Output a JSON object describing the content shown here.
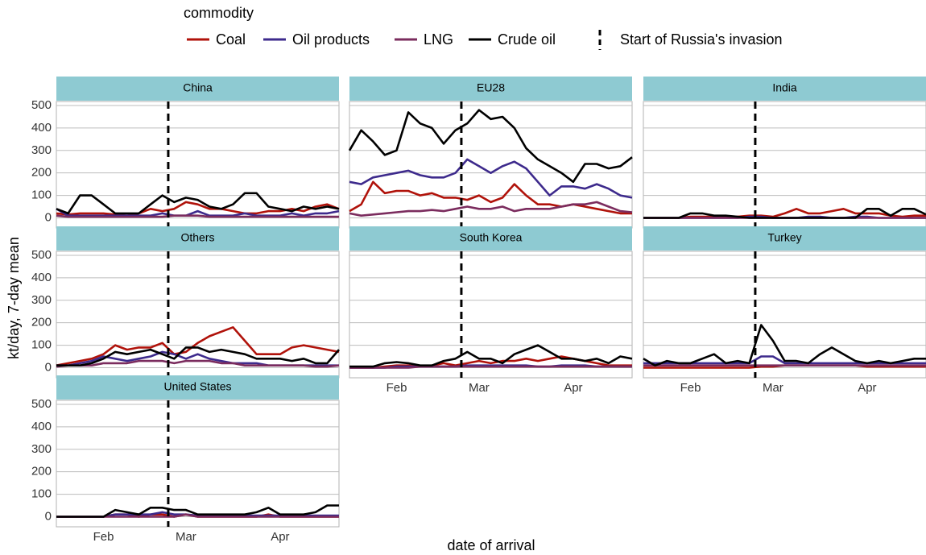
{
  "chart_data": {
    "type": "line",
    "legend_title": "commodity",
    "x_label": "date of arrival",
    "y_label": "kt/day, 7-day mean",
    "series": [
      {
        "name": "Coal",
        "color": "#b0120a"
      },
      {
        "name": "Oil products",
        "color": "#3d2a8c"
      },
      {
        "name": "LNG",
        "color": "#7b2c5e"
      },
      {
        "name": "Crude oil",
        "color": "#000000"
      }
    ],
    "vline": {
      "label": "Start of Russia's invasion",
      "x": 9.5
    },
    "categories": [
      null,
      null,
      null,
      null,
      "Feb",
      null,
      null,
      null,
      null,
      null,
      null,
      "Mar",
      null,
      null,
      null,
      null,
      null,
      null,
      null,
      "Apr",
      null,
      null,
      null,
      null,
      null
    ],
    "ylim": [
      -45,
      518
    ],
    "yticks": [
      0,
      100,
      200,
      300,
      400,
      500
    ],
    "grid": true,
    "facets": [
      {
        "title": "China",
        "series": [
          {
            "values": [
              20,
              15,
              20,
              20,
              20,
              15,
              10,
              20,
              40,
              30,
              40,
              70,
              60,
              40,
              40,
              30,
              20,
              20,
              30,
              30,
              40,
              30,
              50,
              60,
              40
            ]
          },
          {
            "values": [
              40,
              10,
              10,
              10,
              10,
              10,
              10,
              10,
              10,
              20,
              10,
              10,
              30,
              10,
              10,
              10,
              20,
              10,
              10,
              10,
              20,
              10,
              20,
              20,
              30
            ]
          },
          {
            "values": [
              10,
              5,
              5,
              5,
              5,
              5,
              5,
              5,
              5,
              5,
              10,
              10,
              10,
              5,
              5,
              5,
              5,
              5,
              5,
              5,
              5,
              5,
              5,
              5,
              5
            ]
          },
          {
            "values": [
              40,
              20,
              100,
              100,
              60,
              20,
              20,
              20,
              60,
              100,
              70,
              90,
              80,
              50,
              40,
              60,
              110,
              110,
              50,
              40,
              30,
              50,
              40,
              50,
              40
            ]
          }
        ]
      },
      {
        "title": "EU28",
        "series": [
          {
            "values": [
              30,
              60,
              160,
              110,
              120,
              120,
              100,
              110,
              90,
              90,
              80,
              100,
              70,
              90,
              150,
              100,
              60,
              60,
              50,
              60,
              50,
              40,
              30,
              20,
              20
            ]
          },
          {
            "values": [
              160,
              150,
              180,
              190,
              200,
              210,
              190,
              180,
              180,
              200,
              260,
              230,
              200,
              230,
              250,
              220,
              160,
              100,
              140,
              140,
              130,
              150,
              130,
              100,
              90
            ]
          },
          {
            "values": [
              20,
              10,
              15,
              20,
              25,
              30,
              30,
              35,
              30,
              40,
              50,
              40,
              40,
              50,
              30,
              40,
              40,
              40,
              50,
              60,
              60,
              70,
              50,
              30,
              25
            ]
          },
          {
            "values": [
              300,
              390,
              340,
              280,
              300,
              470,
              420,
              400,
              330,
              390,
              420,
              480,
              440,
              450,
              400,
              310,
              260,
              230,
              200,
              160,
              240,
              240,
              220,
              230,
              270
            ]
          }
        ]
      },
      {
        "title": "India",
        "series": [
          {
            "values": [
              0,
              0,
              0,
              0,
              5,
              5,
              5,
              5,
              5,
              10,
              10,
              5,
              20,
              40,
              20,
              20,
              30,
              40,
              20,
              20,
              20,
              10,
              5,
              10,
              10
            ]
          },
          {
            "values": [
              0,
              0,
              0,
              0,
              0,
              0,
              0,
              0,
              0,
              5,
              5,
              0,
              0,
              0,
              5,
              5,
              0,
              0,
              5,
              5,
              0,
              0,
              0,
              0,
              0
            ]
          },
          {
            "values": [
              0,
              0,
              0,
              0,
              0,
              0,
              0,
              0,
              0,
              0,
              0,
              0,
              0,
              0,
              0,
              0,
              0,
              0,
              0,
              0,
              0,
              0,
              0,
              0,
              0
            ]
          },
          {
            "values": [
              0,
              0,
              0,
              0,
              20,
              20,
              10,
              10,
              5,
              0,
              0,
              0,
              0,
              0,
              0,
              0,
              0,
              0,
              0,
              40,
              40,
              10,
              40,
              40,
              15
            ]
          }
        ]
      },
      {
        "title": "Others",
        "series": [
          {
            "values": [
              10,
              20,
              30,
              40,
              60,
              100,
              80,
              90,
              90,
              110,
              60,
              70,
              110,
              140,
              160,
              180,
              120,
              60,
              60,
              60,
              90,
              100,
              90,
              80,
              70
            ]
          },
          {
            "values": [
              10,
              10,
              20,
              30,
              50,
              40,
              30,
              40,
              50,
              70,
              60,
              40,
              60,
              40,
              30,
              20,
              20,
              20,
              10,
              10,
              10,
              10,
              10,
              10,
              10
            ]
          },
          {
            "values": [
              5,
              10,
              10,
              10,
              20,
              20,
              20,
              30,
              30,
              30,
              20,
              30,
              30,
              30,
              20,
              20,
              10,
              10,
              10,
              10,
              10,
              10,
              5,
              5,
              10
            ]
          },
          {
            "values": [
              10,
              10,
              10,
              20,
              40,
              70,
              60,
              70,
              80,
              60,
              40,
              90,
              90,
              70,
              80,
              70,
              60,
              40,
              40,
              40,
              30,
              40,
              20,
              20,
              80
            ]
          }
        ]
      },
      {
        "title": "South Korea",
        "series": [
          {
            "values": [
              0,
              0,
              0,
              5,
              10,
              10,
              5,
              10,
              20,
              10,
              20,
              30,
              20,
              30,
              30,
              40,
              30,
              40,
              50,
              40,
              30,
              20,
              10,
              10,
              10
            ]
          },
          {
            "values": [
              0,
              0,
              0,
              0,
              5,
              5,
              5,
              5,
              5,
              5,
              10,
              10,
              10,
              10,
              10,
              10,
              5,
              5,
              10,
              10,
              10,
              5,
              5,
              5,
              5
            ]
          },
          {
            "values": [
              0,
              0,
              0,
              0,
              0,
              0,
              5,
              5,
              5,
              5,
              5,
              5,
              5,
              5,
              5,
              5,
              5,
              5,
              5,
              5,
              5,
              5,
              5,
              5,
              5
            ]
          },
          {
            "values": [
              5,
              5,
              5,
              20,
              25,
              20,
              10,
              10,
              30,
              40,
              70,
              40,
              40,
              20,
              60,
              80,
              100,
              70,
              40,
              40,
              30,
              40,
              20,
              50,
              40
            ]
          }
        ]
      },
      {
        "title": "Turkey",
        "series": [
          {
            "values": [
              0,
              0,
              0,
              0,
              0,
              0,
              0,
              0,
              0,
              0,
              5,
              5,
              10,
              10,
              10,
              10,
              10,
              10,
              10,
              5,
              5,
              5,
              5,
              5,
              5
            ]
          },
          {
            "values": [
              20,
              20,
              20,
              20,
              20,
              20,
              20,
              20,
              20,
              20,
              50,
              50,
              20,
              20,
              20,
              20,
              20,
              20,
              20,
              20,
              20,
              20,
              20,
              20,
              20
            ]
          },
          {
            "values": [
              10,
              10,
              10,
              10,
              10,
              10,
              10,
              10,
              10,
              10,
              10,
              10,
              10,
              10,
              10,
              10,
              10,
              10,
              10,
              10,
              10,
              10,
              10,
              10,
              10
            ]
          },
          {
            "values": [
              40,
              10,
              30,
              20,
              20,
              40,
              60,
              20,
              30,
              20,
              190,
              120,
              30,
              30,
              20,
              60,
              90,
              60,
              30,
              20,
              30,
              20,
              30,
              40,
              40
            ]
          }
        ]
      },
      {
        "title": "United States",
        "series": [
          {
            "values": [
              0,
              0,
              0,
              0,
              0,
              10,
              10,
              0,
              10,
              10,
              0,
              10,
              0,
              0,
              0,
              0,
              0,
              0,
              10,
              0,
              0,
              0,
              0,
              0,
              0
            ]
          },
          {
            "values": [
              0,
              0,
              0,
              0,
              0,
              10,
              10,
              10,
              10,
              20,
              10,
              10,
              5,
              5,
              5,
              5,
              5,
              5,
              5,
              5,
              5,
              5,
              5,
              5,
              5
            ]
          },
          {
            "values": [
              0,
              0,
              0,
              0,
              0,
              0,
              0,
              0,
              0,
              0,
              0,
              10,
              0,
              0,
              0,
              0,
              0,
              0,
              0,
              0,
              0,
              0,
              0,
              0,
              0
            ]
          },
          {
            "values": [
              0,
              0,
              0,
              0,
              0,
              30,
              20,
              10,
              40,
              40,
              30,
              30,
              10,
              10,
              10,
              10,
              10,
              20,
              40,
              10,
              10,
              10,
              20,
              50,
              50
            ]
          }
        ]
      }
    ]
  }
}
